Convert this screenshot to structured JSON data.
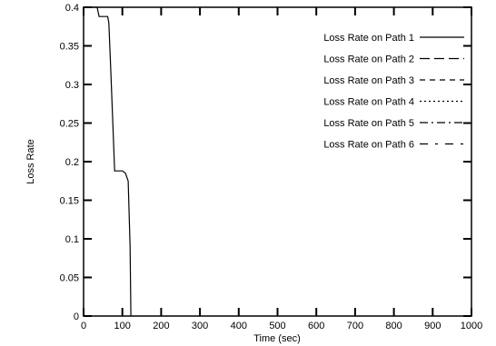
{
  "chart_data": {
    "type": "line",
    "xlabel": "Time (sec)",
    "ylabel": "Loss Rate",
    "xlim": [
      0,
      1000
    ],
    "ylim": [
      0,
      0.4
    ],
    "xticks": [
      0,
      100,
      200,
      300,
      400,
      500,
      600,
      700,
      800,
      900,
      1000
    ],
    "yticks": [
      0,
      0.05,
      0.1,
      0.15,
      0.2,
      0.25,
      0.3,
      0.35,
      0.4
    ],
    "xtick_labels": [
      "0",
      "100",
      "200",
      "300",
      "400",
      "500",
      "600",
      "700",
      "800",
      "900",
      "1000"
    ],
    "ytick_labels": [
      "0",
      "0.05",
      "0.1",
      "0.15",
      "0.2",
      "0.25",
      "0.3",
      "0.35",
      "0.4"
    ],
    "grid": false,
    "legend_position": "top-right",
    "series": [
      {
        "name": "Loss Rate on Path 1",
        "dash": "solid",
        "x": [
          0,
          35,
          40,
          60,
          62,
          65,
          70,
          80,
          100,
          108,
          115,
          120,
          122
        ],
        "y": [
          0.4,
          0.4,
          0.388,
          0.388,
          0.388,
          0.38,
          0.32,
          0.188,
          0.188,
          0.185,
          0.175,
          0.09,
          0
        ]
      },
      {
        "name": "Loss Rate on Path 2",
        "dash": "long-dash",
        "x": [],
        "y": []
      },
      {
        "name": "Loss Rate on Path 3",
        "dash": "dash",
        "x": [],
        "y": []
      },
      {
        "name": "Loss Rate on Path 4",
        "dash": "dot",
        "x": [],
        "y": []
      },
      {
        "name": "Loss Rate on Path 5",
        "dash": "dash-dot",
        "x": [],
        "y": []
      },
      {
        "name": "Loss Rate on Path 6",
        "dash": "dash-dot-sparse",
        "x": [],
        "y": []
      }
    ]
  }
}
